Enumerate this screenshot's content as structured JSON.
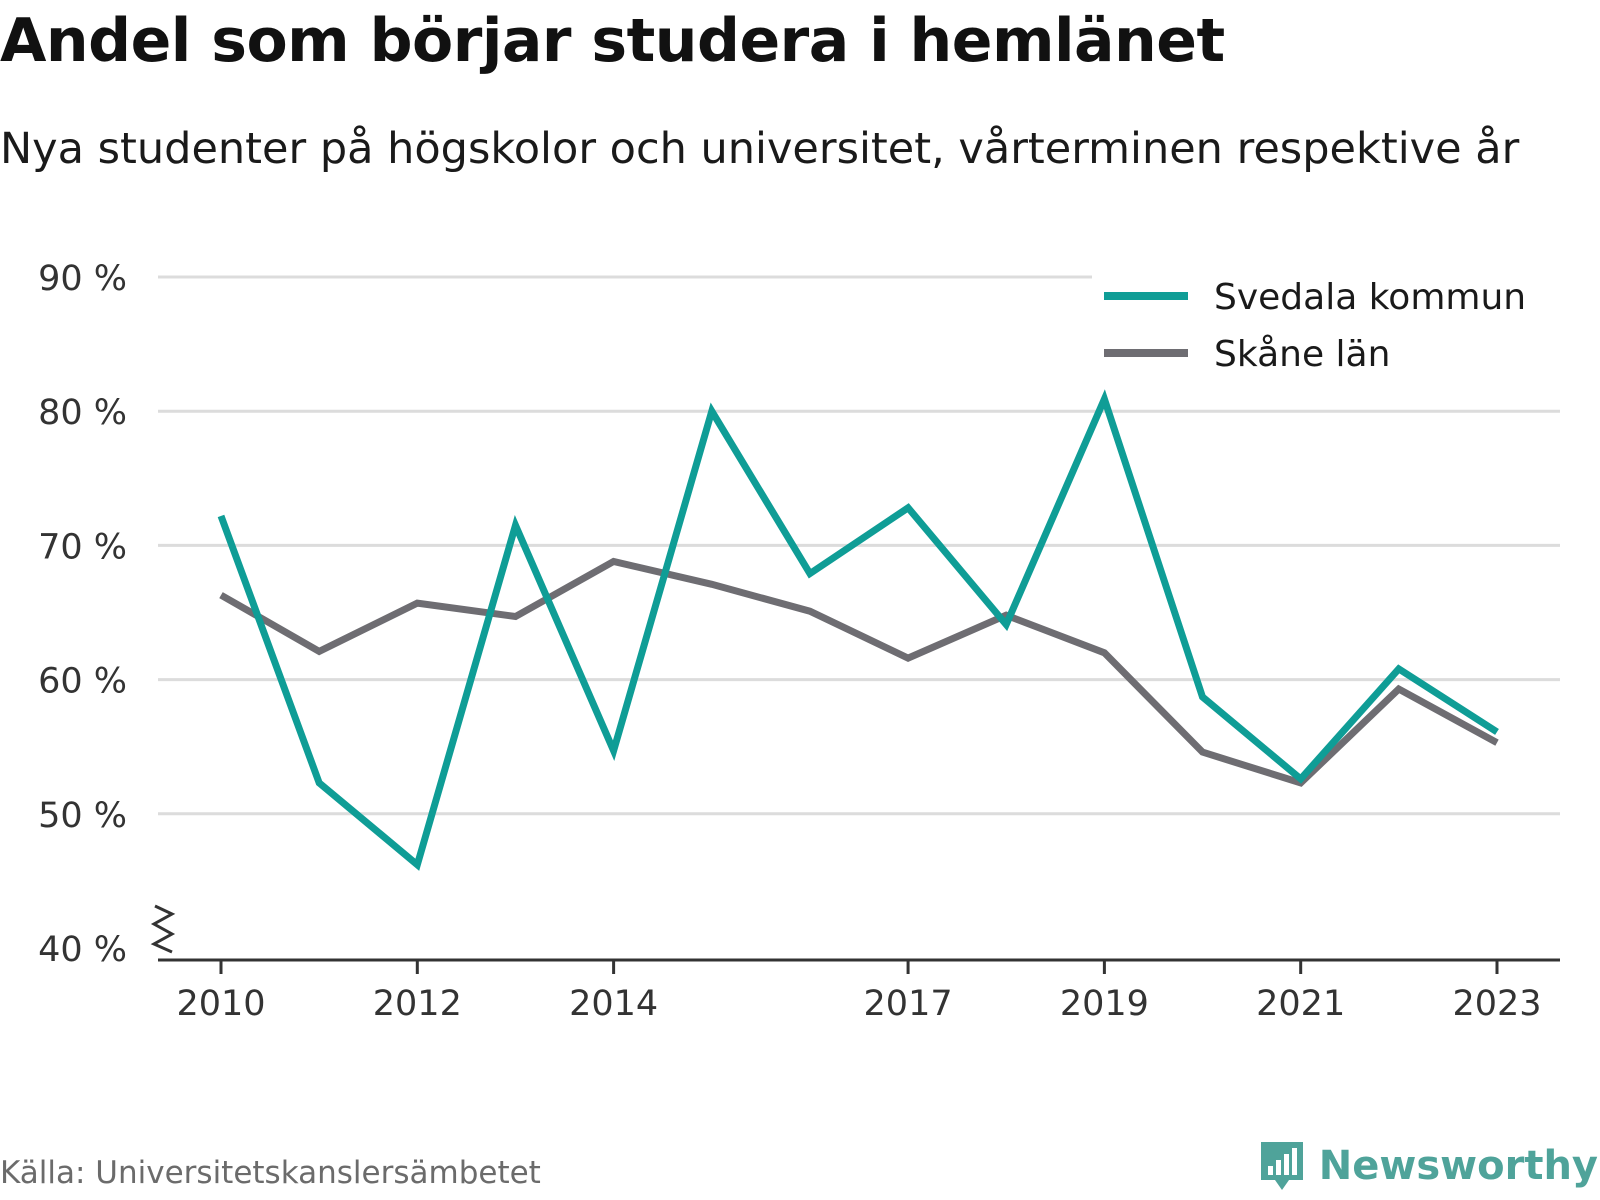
{
  "title": "Andel som börjar studera i hemlänet",
  "subtitle": "Nya studenter på högskolor och universitet, vårterminen respektive år",
  "source": "Källa: Universitetskanslersämbetet",
  "brand": "Newsworthy",
  "brand_icon": "newsworthy-logo-icon",
  "colors": {
    "svedala": "#0f9d96",
    "skane": "#6e6d72",
    "grid": "#dcdcdc",
    "axis": "#333333",
    "brand": "#4fa39a"
  },
  "chart_data": {
    "type": "line",
    "title": "Andel som börjar studera i hemlänet",
    "subtitle": "Nya studenter på högskolor och universitet, vårterminen respektive år",
    "xlabel": "",
    "ylabel": "",
    "x": [
      2010,
      2011,
      2012,
      2013,
      2014,
      2015,
      2016,
      2017,
      2018,
      2019,
      2020,
      2021,
      2022,
      2023
    ],
    "x_tick_labels": [
      "2010",
      "2012",
      "2014",
      "2017",
      "2019",
      "2021",
      "2023"
    ],
    "y_ticks": [
      40,
      50,
      60,
      70,
      80,
      90
    ],
    "y_tick_labels": [
      "40 %",
      "50 %",
      "60 %",
      "70 %",
      "80 %",
      "90 %"
    ],
    "ylim": [
      40,
      90
    ],
    "y_axis_break": true,
    "grid": true,
    "legend_position": "top-right",
    "series": [
      {
        "name": "Svedala kommun",
        "color": "#0f9d96",
        "values": [
          72.2,
          52.3,
          46.2,
          71.5,
          54.7,
          80.0,
          67.9,
          72.8,
          64.1,
          80.9,
          58.7,
          52.6,
          60.8,
          56.1
        ]
      },
      {
        "name": "Skåne län",
        "color": "#6e6d72",
        "values": [
          66.3,
          62.1,
          65.7,
          64.7,
          68.8,
          67.1,
          65.1,
          61.6,
          64.8,
          62.0,
          54.6,
          52.3,
          59.3,
          55.3
        ]
      }
    ]
  }
}
